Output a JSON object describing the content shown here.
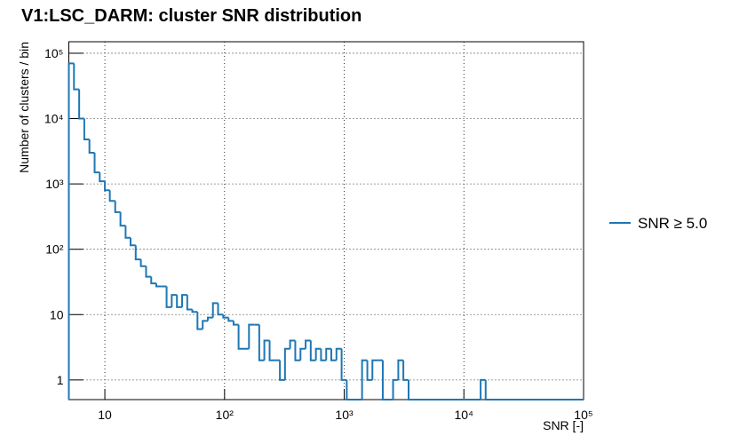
{
  "chart_data": {
    "type": "histogram",
    "title": "V1:LSC_DARM: cluster SNR distribution",
    "x_label": "SNR [-]",
    "y_label": "Number of clusters / bin",
    "log_x": true,
    "log_y": true,
    "grid": true,
    "legend": "right",
    "xlim": [
      5,
      100000
    ],
    "ylim": [
      0.5,
      150000
    ],
    "xticks": [
      10,
      {
        "value": 100,
        "label": "10²"
      },
      {
        "value": 1000,
        "label": "10³"
      },
      {
        "value": 10000,
        "label": "10⁴"
      },
      {
        "value": 100000,
        "label": "10⁵"
      }
    ],
    "yticks": [
      1,
      10,
      {
        "value": 100,
        "label": "10²"
      },
      {
        "value": 1000,
        "label": "10³"
      },
      {
        "value": 10000,
        "label": "10⁴"
      },
      {
        "value": 100000,
        "label": "10⁵"
      }
    ],
    "bins": [
      5.0,
      5.52,
      6.1,
      6.73,
      7.43,
      8.21,
      9.06,
      10.0,
      11.0,
      12.2,
      13.5,
      14.9,
      16.4,
      18.1,
      20.0,
      22.1,
      24.4,
      26.9,
      29.7,
      32.8,
      36.2,
      40.0,
      44.2,
      48.8,
      53.8,
      59.4,
      65.7,
      72.5,
      80.0,
      88.3,
      97.5,
      108,
      119,
      131,
      145,
      160,
      177,
      195,
      215,
      238,
      263,
      290,
      320,
      353,
      390,
      431,
      476,
      525,
      580,
      640,
      707,
      780,
      861,
      951,
      1050,
      1160,
      1280,
      1410,
      1560,
      1720,
      1900,
      2100,
      2320,
      2560,
      2830,
      3120,
      3450,
      3800,
      4200,
      4640,
      5120,
      5650,
      6240,
      6890,
      7610,
      8400,
      9280,
      10200,
      11300,
      12500,
      13800,
      15200,
      16800,
      18600,
      20500,
      22600,
      25000,
      27600,
      30400,
      33600,
      37100,
      41000,
      45200,
      49900,
      55100,
      60800,
      67200,
      74200,
      81900,
      90500,
      100000
    ],
    "series": [
      {
        "name": "SNR ≥ 5.0",
        "color": "#1f77b4",
        "values": [
          70000,
          28000,
          10000,
          4800,
          3000,
          1500,
          1100,
          800,
          550,
          370,
          230,
          150,
          115,
          70,
          55,
          38,
          30,
          27,
          27,
          13,
          20,
          13,
          20,
          12,
          11,
          6,
          8,
          9,
          15,
          10,
          9,
          8,
          7,
          3,
          3,
          7,
          7,
          2,
          4,
          2,
          2,
          1,
          3,
          4,
          2,
          3,
          4,
          2,
          3,
          2,
          3,
          2,
          3,
          1,
          0,
          0,
          0,
          2,
          1,
          2,
          2,
          0,
          0,
          1,
          2,
          1,
          0,
          0,
          0,
          0,
          0,
          0,
          0,
          0,
          0,
          0,
          0,
          0,
          0,
          0,
          1,
          0,
          0,
          0,
          0,
          0,
          0,
          0,
          0,
          0,
          0,
          0,
          0,
          0,
          0,
          0,
          0,
          0,
          0,
          0
        ]
      }
    ]
  }
}
